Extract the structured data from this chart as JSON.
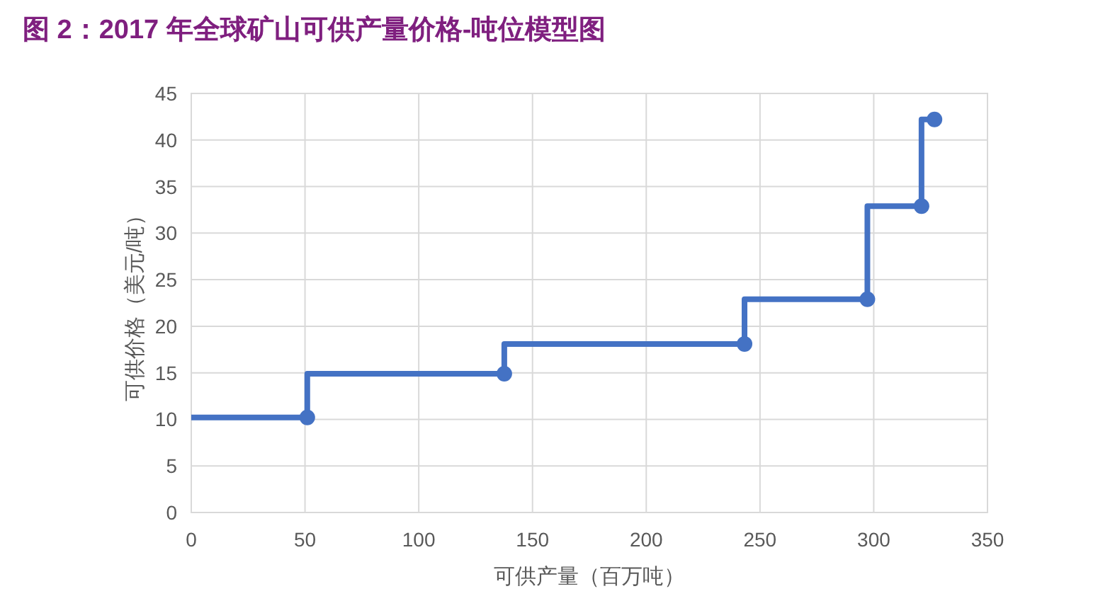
{
  "chart_data": {
    "type": "step",
    "title": "图 2：2017 年全球矿山可供产量价格-吨位模型图",
    "xlabel": "可供产量（百万吨）",
    "ylabel": "可供价格（美元/吨）",
    "xlim": [
      0,
      350
    ],
    "xticks": [
      0,
      50,
      100,
      150,
      200,
      250,
      300,
      350
    ],
    "ylim": [
      0,
      45
    ],
    "yticks": [
      0,
      5,
      10,
      15,
      20,
      25,
      30,
      35,
      40,
      45
    ],
    "grid": true,
    "series": [
      {
        "color": "#4472c4",
        "marker": "none",
        "x": [
          0,
          51,
          137.6,
          243.2,
          297.2,
          321,
          326.7
        ],
        "values": [
          10.2,
          10.2,
          14.9,
          18.1,
          22.9,
          32.9,
          42.2
        ]
      },
      {
        "type": "scatter",
        "color": "#4472c4",
        "marker": "circle",
        "x": [
          51,
          137.6,
          243.2,
          297.2,
          321,
          326.7
        ],
        "values": [
          10.2,
          14.9,
          18.1,
          22.9,
          32.9,
          42.2
        ]
      }
    ]
  }
}
